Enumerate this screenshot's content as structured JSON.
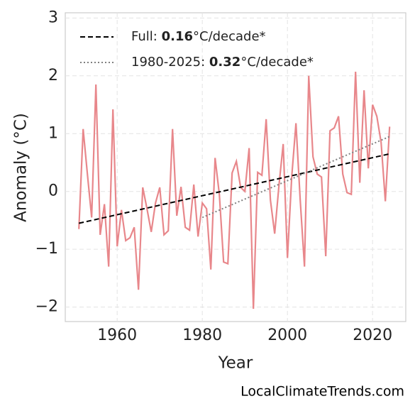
{
  "chart_data": {
    "type": "line",
    "xlabel": "Year",
    "ylabel": "Anomaly (°C)",
    "xlim": [
      1947.8,
      2027.8
    ],
    "ylim": [
      -2.25,
      3.09
    ],
    "xticks": [
      1960,
      1980,
      2000,
      2020
    ],
    "yticks": [
      {
        "value": -2,
        "label": "−2"
      },
      {
        "value": -1,
        "label": "−1"
      },
      0,
      1,
      2,
      3
    ],
    "grid": true,
    "legend": "upper left",
    "series": [
      {
        "color": "#e8878b",
        "style": "solid",
        "x": [
          1951,
          1952,
          1953,
          1954,
          1955,
          1956,
          1957,
          1958,
          1959,
          1960,
          1961,
          1962,
          1963,
          1964,
          1965,
          1966,
          1967,
          1968,
          1969,
          1970,
          1971,
          1972,
          1973,
          1974,
          1975,
          1976,
          1977,
          1978,
          1979,
          1980,
          1981,
          1982,
          1983,
          1984,
          1985,
          1986,
          1987,
          1988,
          1989,
          1990,
          1991,
          1992,
          1993,
          1994,
          1995,
          1996,
          1997,
          1998,
          1999,
          2000,
          2001,
          2002,
          2003,
          2004,
          2005,
          2006,
          2007,
          2008,
          2009,
          2010,
          2011,
          2012,
          2013,
          2014,
          2015,
          2016,
          2017,
          2018,
          2019,
          2020,
          2021,
          2022,
          2023,
          2024
        ],
        "values": [
          -0.65,
          1.08,
          0.3,
          -0.45,
          1.85,
          -0.75,
          -0.22,
          -1.3,
          1.42,
          -0.95,
          -0.32,
          -0.85,
          -0.8,
          -0.62,
          -1.7,
          0.07,
          -0.3,
          -0.7,
          -0.2,
          0.07,
          -0.75,
          -0.68,
          1.08,
          -0.42,
          0.08,
          -0.62,
          -0.67,
          0.12,
          -0.78,
          -0.2,
          -0.3,
          -1.35,
          0.58,
          -0.05,
          -1.22,
          -1.25,
          0.32,
          0.52,
          0.07,
          0.0,
          0.75,
          -2.03,
          0.33,
          0.28,
          1.25,
          -0.15,
          -0.73,
          0.1,
          0.82,
          -1.15,
          0.25,
          1.18,
          -0.15,
          -1.3,
          2.0,
          0.6,
          0.3,
          0.25,
          -1.12,
          1.05,
          1.1,
          1.3,
          0.3,
          -0.02,
          -0.05,
          2.07,
          0.15,
          1.75,
          0.4,
          1.5,
          1.3,
          0.85,
          -0.17,
          1.12
        ]
      },
      {
        "name": "Full: 0.16°C/decade*",
        "color": "#000000",
        "style": "dashed",
        "x": [
          1951,
          2024
        ],
        "values": [
          -0.55,
          0.65
        ]
      },
      {
        "name": "1980-2025: 0.32°C/decade*",
        "color": "#808080",
        "style": "dotted",
        "x": [
          1980,
          2024
        ],
        "values": [
          -0.45,
          0.95
        ]
      }
    ]
  },
  "watermark": "LocalClimateTrends.com"
}
